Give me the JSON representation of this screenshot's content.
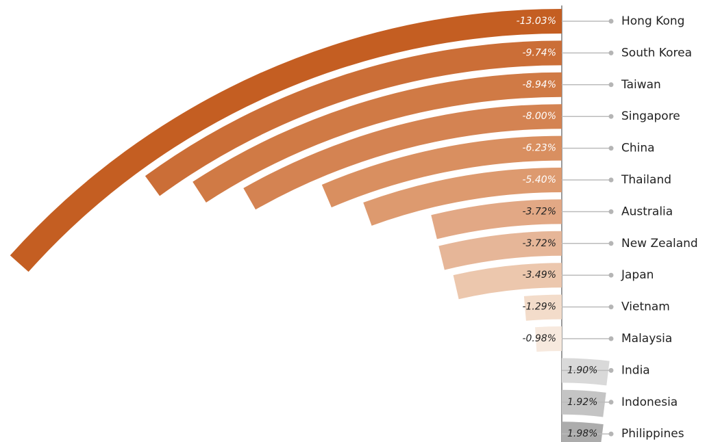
{
  "chart_data": {
    "type": "radial-bar",
    "categories": [
      "Hong Kong",
      "South Korea",
      "Taiwan",
      "Singapore",
      "China",
      "Thailand",
      "Australia",
      "New Zealand",
      "Japan",
      "Vietnam",
      "Malaysia",
      "India",
      "Indonesia",
      "Philippines"
    ],
    "values": [
      -13.03,
      -9.74,
      -8.94,
      -8.0,
      -6.23,
      -5.4,
      -3.72,
      -3.72,
      -3.49,
      -1.29,
      -0.98,
      1.9,
      1.92,
      1.98
    ],
    "value_labels": [
      "-13.03%",
      "-9.74%",
      "-8.94%",
      "-8.00%",
      "-6.23%",
      "-5.40%",
      "-3.72%",
      "-3.72%",
      "-3.49%",
      "-1.29%",
      "-0.98%",
      "1.90%",
      "1.92%",
      "1.98%"
    ],
    "colors": [
      "#c45e22",
      "#cb6e37",
      "#d07a45",
      "#d48352",
      "#d98f60",
      "#dd9a6f",
      "#e2a885",
      "#e6b698",
      "#ecc7ad",
      "#f3dcca",
      "#f7e9de",
      "#d9d9d9",
      "#c4c4c4",
      "#acacac"
    ]
  }
}
